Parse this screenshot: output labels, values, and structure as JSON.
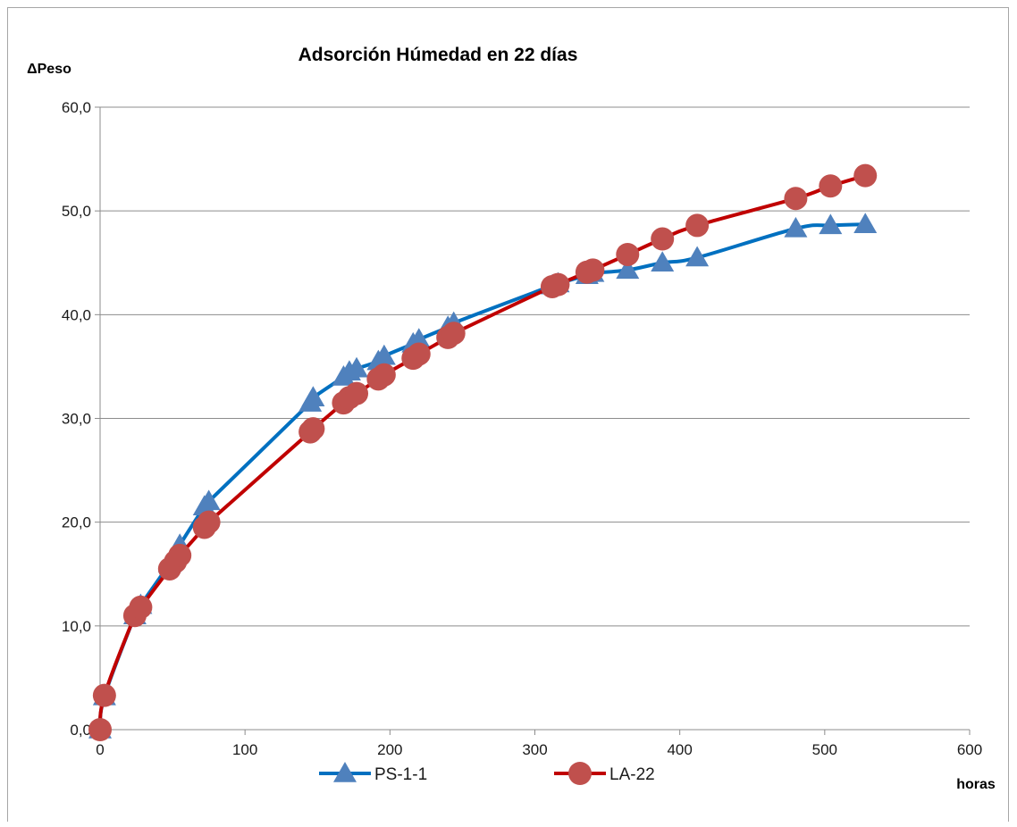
{
  "chart_data": {
    "type": "line",
    "title": "Adsorción Húmedad en 22 días",
    "ylabel": "ΔPeso",
    "xlabel": "horas",
    "xlim": [
      0,
      600
    ],
    "ylim": [
      0,
      60
    ],
    "x_ticks": [
      "0",
      "100",
      "200",
      "300",
      "400",
      "500",
      "600"
    ],
    "y_ticks": [
      "0,0",
      "10,0",
      "20,0",
      "30,0",
      "40,0",
      "50,0",
      "60,0"
    ],
    "grid": "horizontal",
    "legend_position": "bottom",
    "series": [
      {
        "name": "PS-1-1",
        "color": "#0070c0",
        "marker_color": "#4f81bd",
        "marker": "triangle",
        "x": [
          0,
          3,
          24,
          28,
          48,
          52,
          55,
          72,
          75,
          145,
          147,
          168,
          172,
          177,
          192,
          196,
          216,
          220,
          240,
          244,
          312,
          316,
          336,
          340,
          364,
          388,
          412,
          480,
          504,
          528
        ],
        "y": [
          0,
          3.2,
          11.0,
          12.0,
          16.0,
          17.0,
          17.8,
          21.5,
          22.0,
          31.5,
          32.0,
          34.0,
          34.5,
          34.8,
          35.5,
          36.0,
          37.2,
          37.6,
          38.8,
          39.2,
          42.8,
          43.0,
          43.8,
          44.0,
          44.3,
          45.0,
          45.5,
          48.3,
          48.6,
          48.7
        ]
      },
      {
        "name": "LA-22",
        "color": "#c00000",
        "marker_color": "#c0504d",
        "marker": "circle",
        "x": [
          0,
          3,
          24,
          28,
          48,
          52,
          55,
          72,
          75,
          145,
          147,
          168,
          172,
          177,
          192,
          196,
          216,
          220,
          240,
          244,
          312,
          316,
          336,
          340,
          364,
          388,
          412,
          480,
          504,
          528
        ],
        "y": [
          0,
          3.3,
          11.0,
          11.8,
          15.5,
          16.2,
          16.8,
          19.5,
          20.0,
          28.7,
          29.0,
          31.5,
          32.0,
          32.4,
          33.8,
          34.2,
          35.8,
          36.2,
          37.8,
          38.2,
          42.7,
          42.9,
          44.1,
          44.3,
          45.8,
          47.3,
          48.6,
          51.2,
          52.4,
          53.4
        ]
      }
    ]
  }
}
